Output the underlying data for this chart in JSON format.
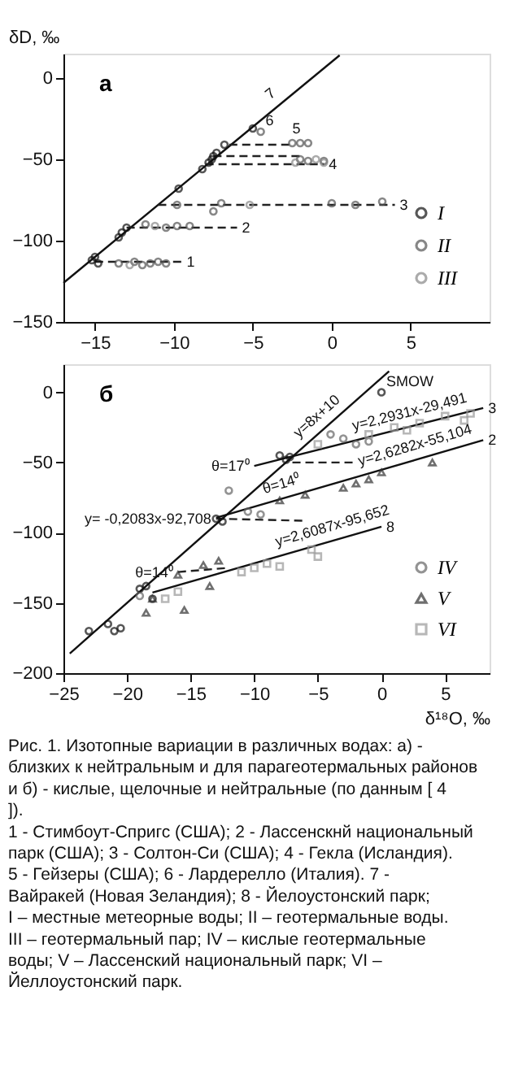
{
  "chart_data": [
    {
      "type": "scatter",
      "ylabel": "δD, ‰",
      "xlim": [
        -17,
        10
      ],
      "ylim": [
        -150,
        15
      ],
      "xticks": [
        -15,
        -10,
        -5,
        0,
        5
      ],
      "yticks": [
        -150,
        -100,
        -50,
        0
      ],
      "grid": false,
      "legend": "bottom right",
      "series": [
        {
          "type": "line",
          "color": "#111111",
          "line_style": "solid",
          "x": [
            -17,
            0.5
          ],
          "values": [
            -126,
            14
          ]
        },
        {
          "type": "line",
          "color": "#222222",
          "line_style": "dashed",
          "x": [
            -15,
            -9.5
          ],
          "values": [
            -113,
            -113
          ]
        },
        {
          "type": "line",
          "color": "#222222",
          "line_style": "dashed",
          "x": [
            -13,
            -6
          ],
          "values": [
            -92,
            -92
          ]
        },
        {
          "type": "line",
          "color": "#222222",
          "line_style": "dashed",
          "x": [
            -11,
            4
          ],
          "values": [
            -78,
            -78
          ]
        },
        {
          "type": "line",
          "color": "#222222",
          "line_style": "dashed",
          "x": [
            -8,
            -0.5
          ],
          "values": [
            -53,
            -53
          ]
        },
        {
          "type": "line",
          "color": "#222222",
          "line_style": "dashed",
          "x": [
            -7.5,
            -2
          ],
          "values": [
            -48,
            -48
          ]
        },
        {
          "type": "line",
          "color": "#222222",
          "line_style": "dashed",
          "x": [
            -6.5,
            -2.5
          ],
          "values": [
            -41,
            -41
          ]
        },
        {
          "name": "I",
          "color": "#111111",
          "marker": "circle",
          "x": [
            -15.2,
            -15,
            -14.8,
            -13.5,
            -13.3,
            -13,
            -9.7,
            -8.2,
            -7.8,
            -7.6,
            -7.5,
            -7.3,
            -6.8,
            -5
          ],
          "values": [
            -112,
            -110,
            -114,
            -98,
            -95,
            -92,
            -68,
            -56,
            -52,
            -50,
            -48,
            -46,
            -41,
            -31
          ]
        },
        {
          "name": "II",
          "color": "#555555",
          "marker": "circle",
          "x": [
            -13.5,
            -12.5,
            -12,
            -11.5,
            -11,
            -10.5,
            -11.8,
            -10.5,
            -9.8,
            -9,
            -9.8,
            -7.5,
            -7,
            0,
            1.5,
            3.2,
            -2.5,
            -2,
            -1.5,
            -2,
            -1.5,
            -0.5,
            -4.5
          ],
          "values": [
            -114,
            -113,
            -115,
            -114,
            -113,
            -114,
            -90,
            -92,
            -91,
            -91,
            -78,
            -82,
            -77,
            -77,
            -78,
            -76,
            -40,
            -40,
            -40,
            -50,
            -51,
            -51,
            -33
          ]
        },
        {
          "name": "III",
          "color": "#888888",
          "marker": "circle",
          "x": [
            -12.8,
            -11.2,
            -5.2,
            -2.3,
            -1,
            -0.5
          ],
          "values": [
            -115,
            -91,
            -78,
            -52,
            -50,
            -52
          ]
        }
      ],
      "annotations": [
        "а",
        {
          "text": "1",
          "x": -9.5,
          "y": -113
        },
        {
          "text": "2",
          "x": -6,
          "y": -92
        },
        {
          "text": "3",
          "x": 4,
          "y": -78
        },
        {
          "text": "4",
          "x": -0.5,
          "y": -53
        },
        {
          "text": "5",
          "x": -2.5,
          "y": -40
        },
        {
          "text": "6",
          "x": -4.5,
          "y": -33
        },
        {
          "text": "7",
          "x": -3.5,
          "y": -18
        }
      ]
    },
    {
      "type": "scatter",
      "xlabel": "δ¹⁸O, ‰",
      "xlim": [
        -25,
        8.5
      ],
      "ylim": [
        -200,
        20
      ],
      "xticks": [
        -25,
        -20,
        -15,
        -10,
        -5,
        0,
        5
      ],
      "yticks": [
        -200,
        -150,
        -100,
        -50,
        0
      ],
      "grid": false,
      "legend": "bottom right",
      "series": [
        {
          "type": "line",
          "color": "#111111",
          "line_style": "solid",
          "x": [
            -24.5,
            0.6
          ],
          "values": [
            -186,
            15
          ]
        },
        {
          "type": "line",
          "color": "#111111",
          "line_style": "solid",
          "x": [
            -10,
            8
          ],
          "values": [
            -52.4,
            -11.2
          ]
        },
        {
          "type": "line",
          "color": "#111111",
          "line_style": "solid",
          "x": [
            -13,
            8
          ],
          "values": [
            -89.3,
            -34.1
          ]
        },
        {
          "type": "line",
          "color": "#111111",
          "line_style": "solid",
          "x": [
            -18,
            0
          ],
          "values": [
            -142.6,
            -95.7
          ]
        },
        {
          "type": "line",
          "color": "#222222",
          "line_style": "dashed",
          "x": [
            -13,
            -6
          ],
          "values": [
            -90,
            -91.5
          ]
        },
        {
          "type": "line",
          "color": "#222222",
          "line_style": "dashed",
          "x": [
            -7,
            -2
          ],
          "values": [
            -50,
            -50
          ]
        },
        {
          "type": "line",
          "color": "#222222",
          "line_style": "dashed",
          "x": [
            -16,
            -12
          ],
          "values": [
            -128,
            -125
          ]
        },
        {
          "color": "#111111",
          "marker": "circle",
          "x": [
            -23,
            -21.5,
            -21,
            -20.5,
            -19,
            -18.5,
            -18,
            -13,
            -12.5,
            -8,
            -7.5,
            -7.2
          ],
          "values": [
            -170,
            -165,
            -170,
            -168,
            -140,
            -138,
            -147,
            -90,
            -92,
            -45,
            -48,
            -46
          ]
        },
        {
          "color": "#111111",
          "marker": "circle",
          "x": [
            0
          ],
          "values": [
            0
          ]
        },
        {
          "name": "IV",
          "color": "#666666",
          "marker": "circle",
          "x": [
            -12,
            -10.5,
            -9.5,
            -4,
            -3,
            -2,
            -1,
            -19
          ],
          "values": [
            -70,
            -85,
            -87,
            -30,
            -33,
            -37,
            -35,
            -145
          ]
        },
        {
          "name": "V",
          "color": "#333333",
          "marker": "triangle",
          "x": [
            -18.5,
            -16,
            -15.5,
            -14,
            -13.5,
            -12.8,
            -8,
            -6,
            -3,
            -2,
            -1,
            0,
            4,
            -18
          ],
          "values": [
            -157,
            -130,
            -155,
            -123,
            -138,
            -120,
            -77,
            -73,
            -68,
            -65,
            -62,
            -57,
            -50,
            -147
          ]
        },
        {
          "name": "VI",
          "color": "#999999",
          "marker": "square",
          "x": [
            -17,
            -16,
            -11,
            -10,
            -9,
            -8,
            -5.5,
            -5,
            -1,
            2,
            3,
            5,
            7,
            6.5,
            -5,
            1
          ],
          "values": [
            -147,
            -142,
            -128,
            -125,
            -122,
            -124,
            -112,
            -117,
            -30,
            -27,
            -22,
            -17,
            -15,
            -20,
            -37,
            -25
          ]
        }
      ],
      "annotations": [
        "б",
        "Рис. 1. Изотопные вариации в различных водах: а) - близких к нейтральным и для парагеотермальных районов и б) - кислые, щелочные и нейтральные (по данным [ 4 ]).",
        "1 - Стимбоут-Спригс (США); 2 - Лассенскнй национальный парк (США); 3 - Солтон-Си (США); 4 - Гекла (Исландия). 5 - Гейзеры (США); 6 - Лардерелло (Италия). 7 - Вайракей (Новая Зеландия); 8 - Йелоустонский парк;",
        "I – местные метеорные воды; II – геотермальные воды. III – геотермальный пар; IV – кислые геотермальные воды; V – Лассенский национальный парк; VI – Йеллоустонский парк.",
        {
          "text": "SMOW",
          "x": 0,
          "y": 0
        },
        {
          "text": "3",
          "x": 8,
          "y": -11.2
        },
        {
          "text": "2",
          "x": 8,
          "y": -34.1
        },
        {
          "text": "8",
          "x": 0,
          "y": -95.7
        },
        {
          "text": "y=8x+10",
          "x": -6,
          "y": -38
        },
        {
          "text": "y=2,2931x-29,491",
          "x": -2,
          "y": -34.1
        },
        {
          "text": "y=2,6282x-55,104",
          "x": -1.5,
          "y": -59.1
        },
        {
          "text": "y= -0,2083x-92,708",
          "x": -13,
          "y": -90
        },
        {
          "text": "y=2,6087x-95,652",
          "x": -8,
          "y": -116.5
        },
        {
          "text": "θ=17⁰",
          "x": -10,
          "y": -52.4
        },
        {
          "text": "θ=14⁰",
          "x": -9,
          "y": -78.8
        },
        {
          "text": "θ=14⁰",
          "x": -16,
          "y": -128
        }
      ]
    }
  ]
}
